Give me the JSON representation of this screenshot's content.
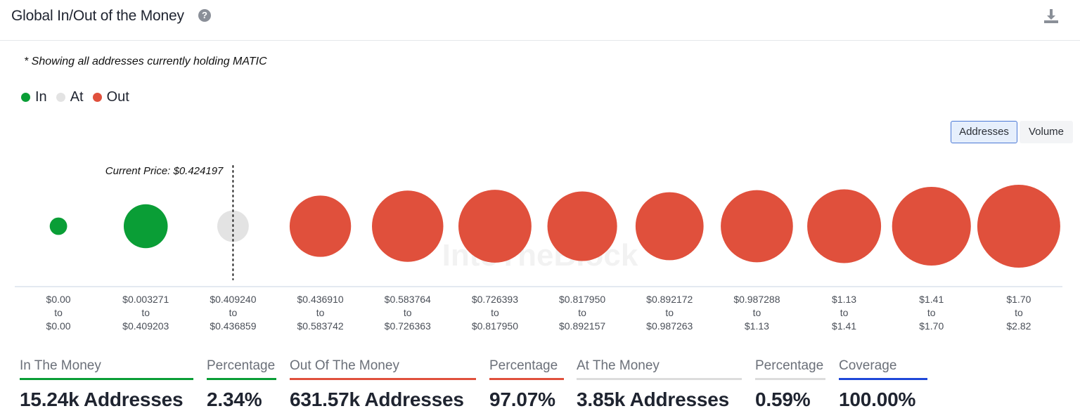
{
  "header": {
    "title": "Global In/Out of the Money",
    "help_symbol": "?"
  },
  "note": "* Showing all addresses currently holding MATIC",
  "legend": [
    {
      "label": "In",
      "color": "#0a9e36"
    },
    {
      "label": "At",
      "color": "#e3e3e3"
    },
    {
      "label": "Out",
      "color": "#e0503c"
    }
  ],
  "toggles": {
    "addresses": "Addresses",
    "volume": "Volume",
    "active": "addresses"
  },
  "chart_data": {
    "type": "bubble",
    "current_price_label": "Current Price: $0.424197",
    "watermark": "IntoTheBlock",
    "categories": [
      {
        "from": "$0.00",
        "to": "$0.00",
        "status": "In",
        "relative_size": 0.21
      },
      {
        "from": "$0.003271",
        "to": "$0.409203",
        "status": "In",
        "relative_size": 0.53
      },
      {
        "from": "$0.409240",
        "to": "$0.436859",
        "status": "At",
        "relative_size": 0.38
      },
      {
        "from": "$0.436910",
        "to": "$0.583742",
        "status": "Out",
        "relative_size": 0.74
      },
      {
        "from": "$0.583764",
        "to": "$0.726363",
        "status": "Out",
        "relative_size": 0.86
      },
      {
        "from": "$0.726393",
        "to": "$0.817950",
        "status": "Out",
        "relative_size": 0.88
      },
      {
        "from": "$0.817950",
        "to": "$0.892157",
        "status": "Out",
        "relative_size": 0.84
      },
      {
        "from": "$0.892172",
        "to": "$0.987263",
        "status": "Out",
        "relative_size": 0.82
      },
      {
        "from": "$0.987288",
        "to": "$1.13",
        "status": "Out",
        "relative_size": 0.87
      },
      {
        "from": "$1.13",
        "to": "$1.41",
        "status": "Out",
        "relative_size": 0.89
      },
      {
        "from": "$1.41",
        "to": "$1.70",
        "status": "Out",
        "relative_size": 0.95
      },
      {
        "from": "$1.70",
        "to": "$2.82",
        "status": "Out",
        "relative_size": 1.0
      }
    ],
    "to_word": "to",
    "colors": {
      "In": "#0a9e36",
      "At": "#e3e3e3",
      "Out": "#e0503c"
    }
  },
  "stats": [
    {
      "label": "In The Money",
      "value": "15.24k Addresses",
      "color": "#0a9e36"
    },
    {
      "label": "Percentage",
      "value": "2.34%",
      "color": "#0a9e36"
    },
    {
      "label": "Out Of The Money",
      "value": "631.57k Addresses",
      "color": "#e0503c"
    },
    {
      "label": "Percentage",
      "value": "97.07%",
      "color": "#e0503c"
    },
    {
      "label": "At The Money",
      "value": "3.85k Addresses",
      "color": "#dcdcdc"
    },
    {
      "label": "Percentage",
      "value": "0.59%",
      "color": "#dcdcdc"
    },
    {
      "label": "Coverage",
      "value": "100.00%",
      "color": "#1f47d8"
    }
  ]
}
